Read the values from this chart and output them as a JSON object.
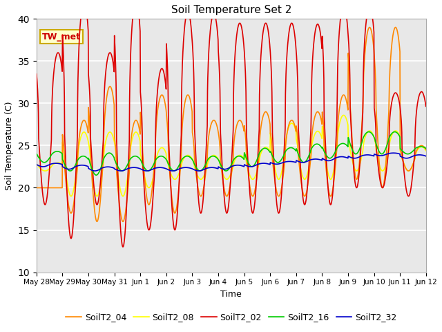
{
  "title": "Soil Temperature Set 2",
  "xlabel": "Time",
  "ylabel": "Soil Temperature (C)",
  "ylim": [
    10,
    40
  ],
  "yticks": [
    10,
    15,
    20,
    25,
    30,
    35,
    40
  ],
  "annotation_text": "TW_met",
  "annotation_color": "#cc0000",
  "annotation_bg": "#ffffcc",
  "annotation_border": "#ccaa00",
  "colors": {
    "SoilT2_02": "#dd0000",
    "SoilT2_04": "#ff8800",
    "SoilT2_08": "#ffff00",
    "SoilT2_16": "#00cc00",
    "SoilT2_32": "#0000cc"
  },
  "bg_color": "#e8e8e8",
  "fig_color": "#ffffff",
  "xtick_labels": [
    "May 28",
    "May 29",
    "May 30",
    "May 31",
    "Jun 1",
    "Jun 2",
    "Jun 3",
    "Jun 4",
    "Jun 5",
    "Jun 6",
    "Jun 7",
    "Jun 8",
    "Jun 9",
    "Jun 10",
    "Jun 11",
    "Jun 12"
  ],
  "n_days": 15,
  "line_width": 1.2,
  "legend_entries": [
    "SoilT2_02",
    "SoilT2_04",
    "SoilT2_08",
    "SoilT2_16",
    "SoilT2_32"
  ]
}
